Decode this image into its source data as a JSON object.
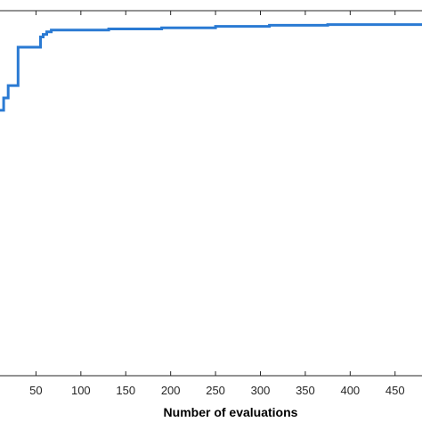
{
  "chart_data": {
    "type": "line",
    "title": "",
    "xlabel": "Number of evaluations",
    "ylabel": "",
    "xlim": [
      0,
      480
    ],
    "ylim": [
      0,
      1
    ],
    "x_ticks": [
      50,
      100,
      150,
      200,
      250,
      300,
      350,
      400,
      450
    ],
    "grid": false,
    "line_color": "#2a7ad3",
    "series": [
      {
        "style": "step",
        "x": [
          0,
          14,
          14,
          19,
          19,
          30,
          30,
          55,
          55,
          58,
          58,
          62,
          62,
          67,
          67,
          131,
          131,
          190,
          190,
          250,
          250,
          310,
          310,
          375,
          375,
          480
        ],
        "y": [
          0.727,
          0.727,
          0.761,
          0.761,
          0.795,
          0.795,
          0.9,
          0.9,
          0.928,
          0.928,
          0.935,
          0.935,
          0.942,
          0.942,
          0.947,
          0.947,
          0.95,
          0.95,
          0.953,
          0.953,
          0.957,
          0.957,
          0.96,
          0.96,
          0.962,
          0.962
        ]
      }
    ]
  }
}
